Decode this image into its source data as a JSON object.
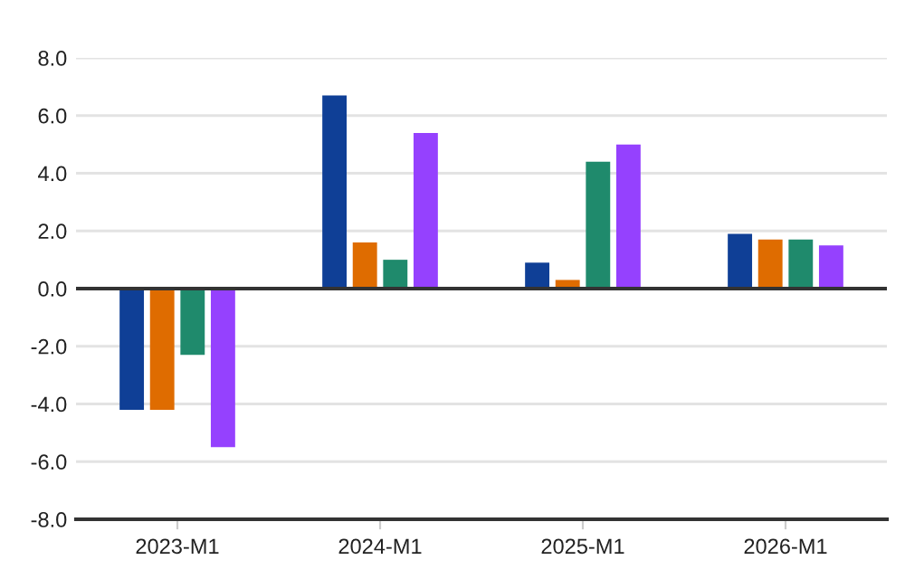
{
  "chart_data": {
    "type": "bar",
    "categories": [
      "2023-M1",
      "2024-M1",
      "2025-M1",
      "2026-M1"
    ],
    "series": [
      {
        "color": "#0f3f96",
        "values": [
          -4.2,
          6.7,
          0.9,
          1.9
        ]
      },
      {
        "color": "#df6c00",
        "values": [
          -4.2,
          1.6,
          0.3,
          1.7
        ]
      },
      {
        "color": "#1f8a6c",
        "values": [
          -2.3,
          1.0,
          4.4,
          1.7
        ]
      },
      {
        "color": "#9541fe",
        "values": [
          -5.5,
          5.4,
          5.0,
          1.5
        ]
      }
    ],
    "ylim": [
      -8,
      8
    ],
    "yticks": [
      {
        "value": -8,
        "label": "-8.0"
      },
      {
        "value": -6,
        "label": "-6.0"
      },
      {
        "value": -4,
        "label": "-4.0"
      },
      {
        "value": -2,
        "label": "-2.0"
      },
      {
        "value": 0,
        "label": "0.0"
      },
      {
        "value": 2,
        "label": "2.0"
      },
      {
        "value": 4,
        "label": "4.0"
      },
      {
        "value": 6,
        "label": "6.0"
      },
      {
        "value": 8,
        "label": "8.0"
      }
    ],
    "grid": "y"
  }
}
